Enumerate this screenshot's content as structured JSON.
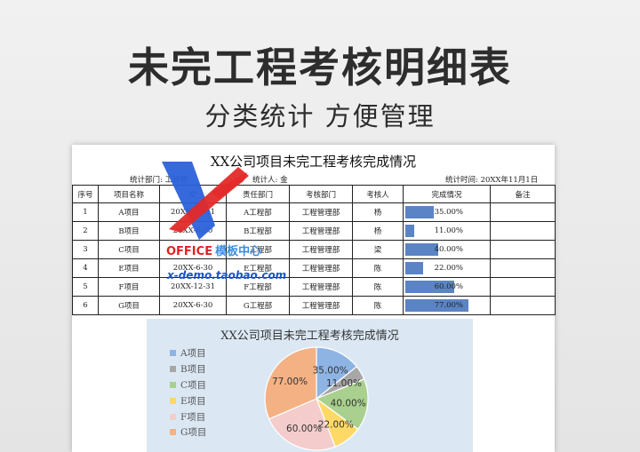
{
  "hero": {
    "title": "未完工程考核明细表",
    "subtitle": "分类统计 方便管理"
  },
  "sheet": {
    "title": "XX公司项目未完工程考核完成情况",
    "meta": {
      "dept": "统计部门: 工程管",
      "person": "统计人: 金",
      "time": "统计时间: 20XX年11月1日"
    },
    "headers": [
      "序号",
      "项目名称",
      "交",
      "责任部门",
      "考核部门",
      "考核人",
      "完成情况",
      "备注"
    ],
    "rows": [
      {
        "no": "1",
        "name": "A项目",
        "date": "20XX-12-31",
        "dept": "A工程部",
        "audit": "工程管理部",
        "person": "杨",
        "pct": "35.00%",
        "remark": ""
      },
      {
        "no": "2",
        "name": "B项目",
        "date": "20XX-6-30",
        "dept": "B工程部",
        "audit": "工程管理部",
        "person": "杨",
        "pct": "11.00%",
        "remark": ""
      },
      {
        "no": "3",
        "name": "C项目",
        "date": "",
        "dept": "C工程部",
        "audit": "工程管理部",
        "person": "梁",
        "pct": "40.00%",
        "remark": ""
      },
      {
        "no": "4",
        "name": "E项目",
        "date": "20XX-6-30",
        "dept": "E工程部",
        "audit": "工程管理部",
        "person": "陈",
        "pct": "22.00%",
        "remark": ""
      },
      {
        "no": "5",
        "name": "F项目",
        "date": "20XX-12-31",
        "dept": "F工程部",
        "audit": "工程管理部",
        "person": "陈",
        "pct": "60.00%",
        "remark": ""
      },
      {
        "no": "6",
        "name": "G项目",
        "date": "20XX-6-30",
        "dept": "G工程部",
        "audit": "工程管理部",
        "person": "陈",
        "pct": "77.00%",
        "remark": ""
      }
    ]
  },
  "progress": [
    0.35,
    0.11,
    0.4,
    0.22,
    0.6,
    0.77
  ],
  "watermark": {
    "brand_left": "OFFICE",
    "brand_right": "模板中心",
    "url": "x-demo.taobao.com"
  },
  "chart_data": {
    "type": "pie",
    "title": "XX公司项目未完工程考核完成情况",
    "categories": [
      "A项目",
      "B项目",
      "C项目",
      "E项目",
      "F项目",
      "G项目"
    ],
    "values": [
      35,
      11,
      40,
      22,
      60,
      77
    ],
    "labels": [
      "35.00%",
      "11.00%",
      "40.00%",
      "22.00%",
      "60.00%",
      "77.00%"
    ],
    "colors": [
      "#8eb4e3",
      "#a7a7a7",
      "#a9d08e",
      "#ffd966",
      "#f4cccc",
      "#f4b183"
    ],
    "legend": "left"
  }
}
